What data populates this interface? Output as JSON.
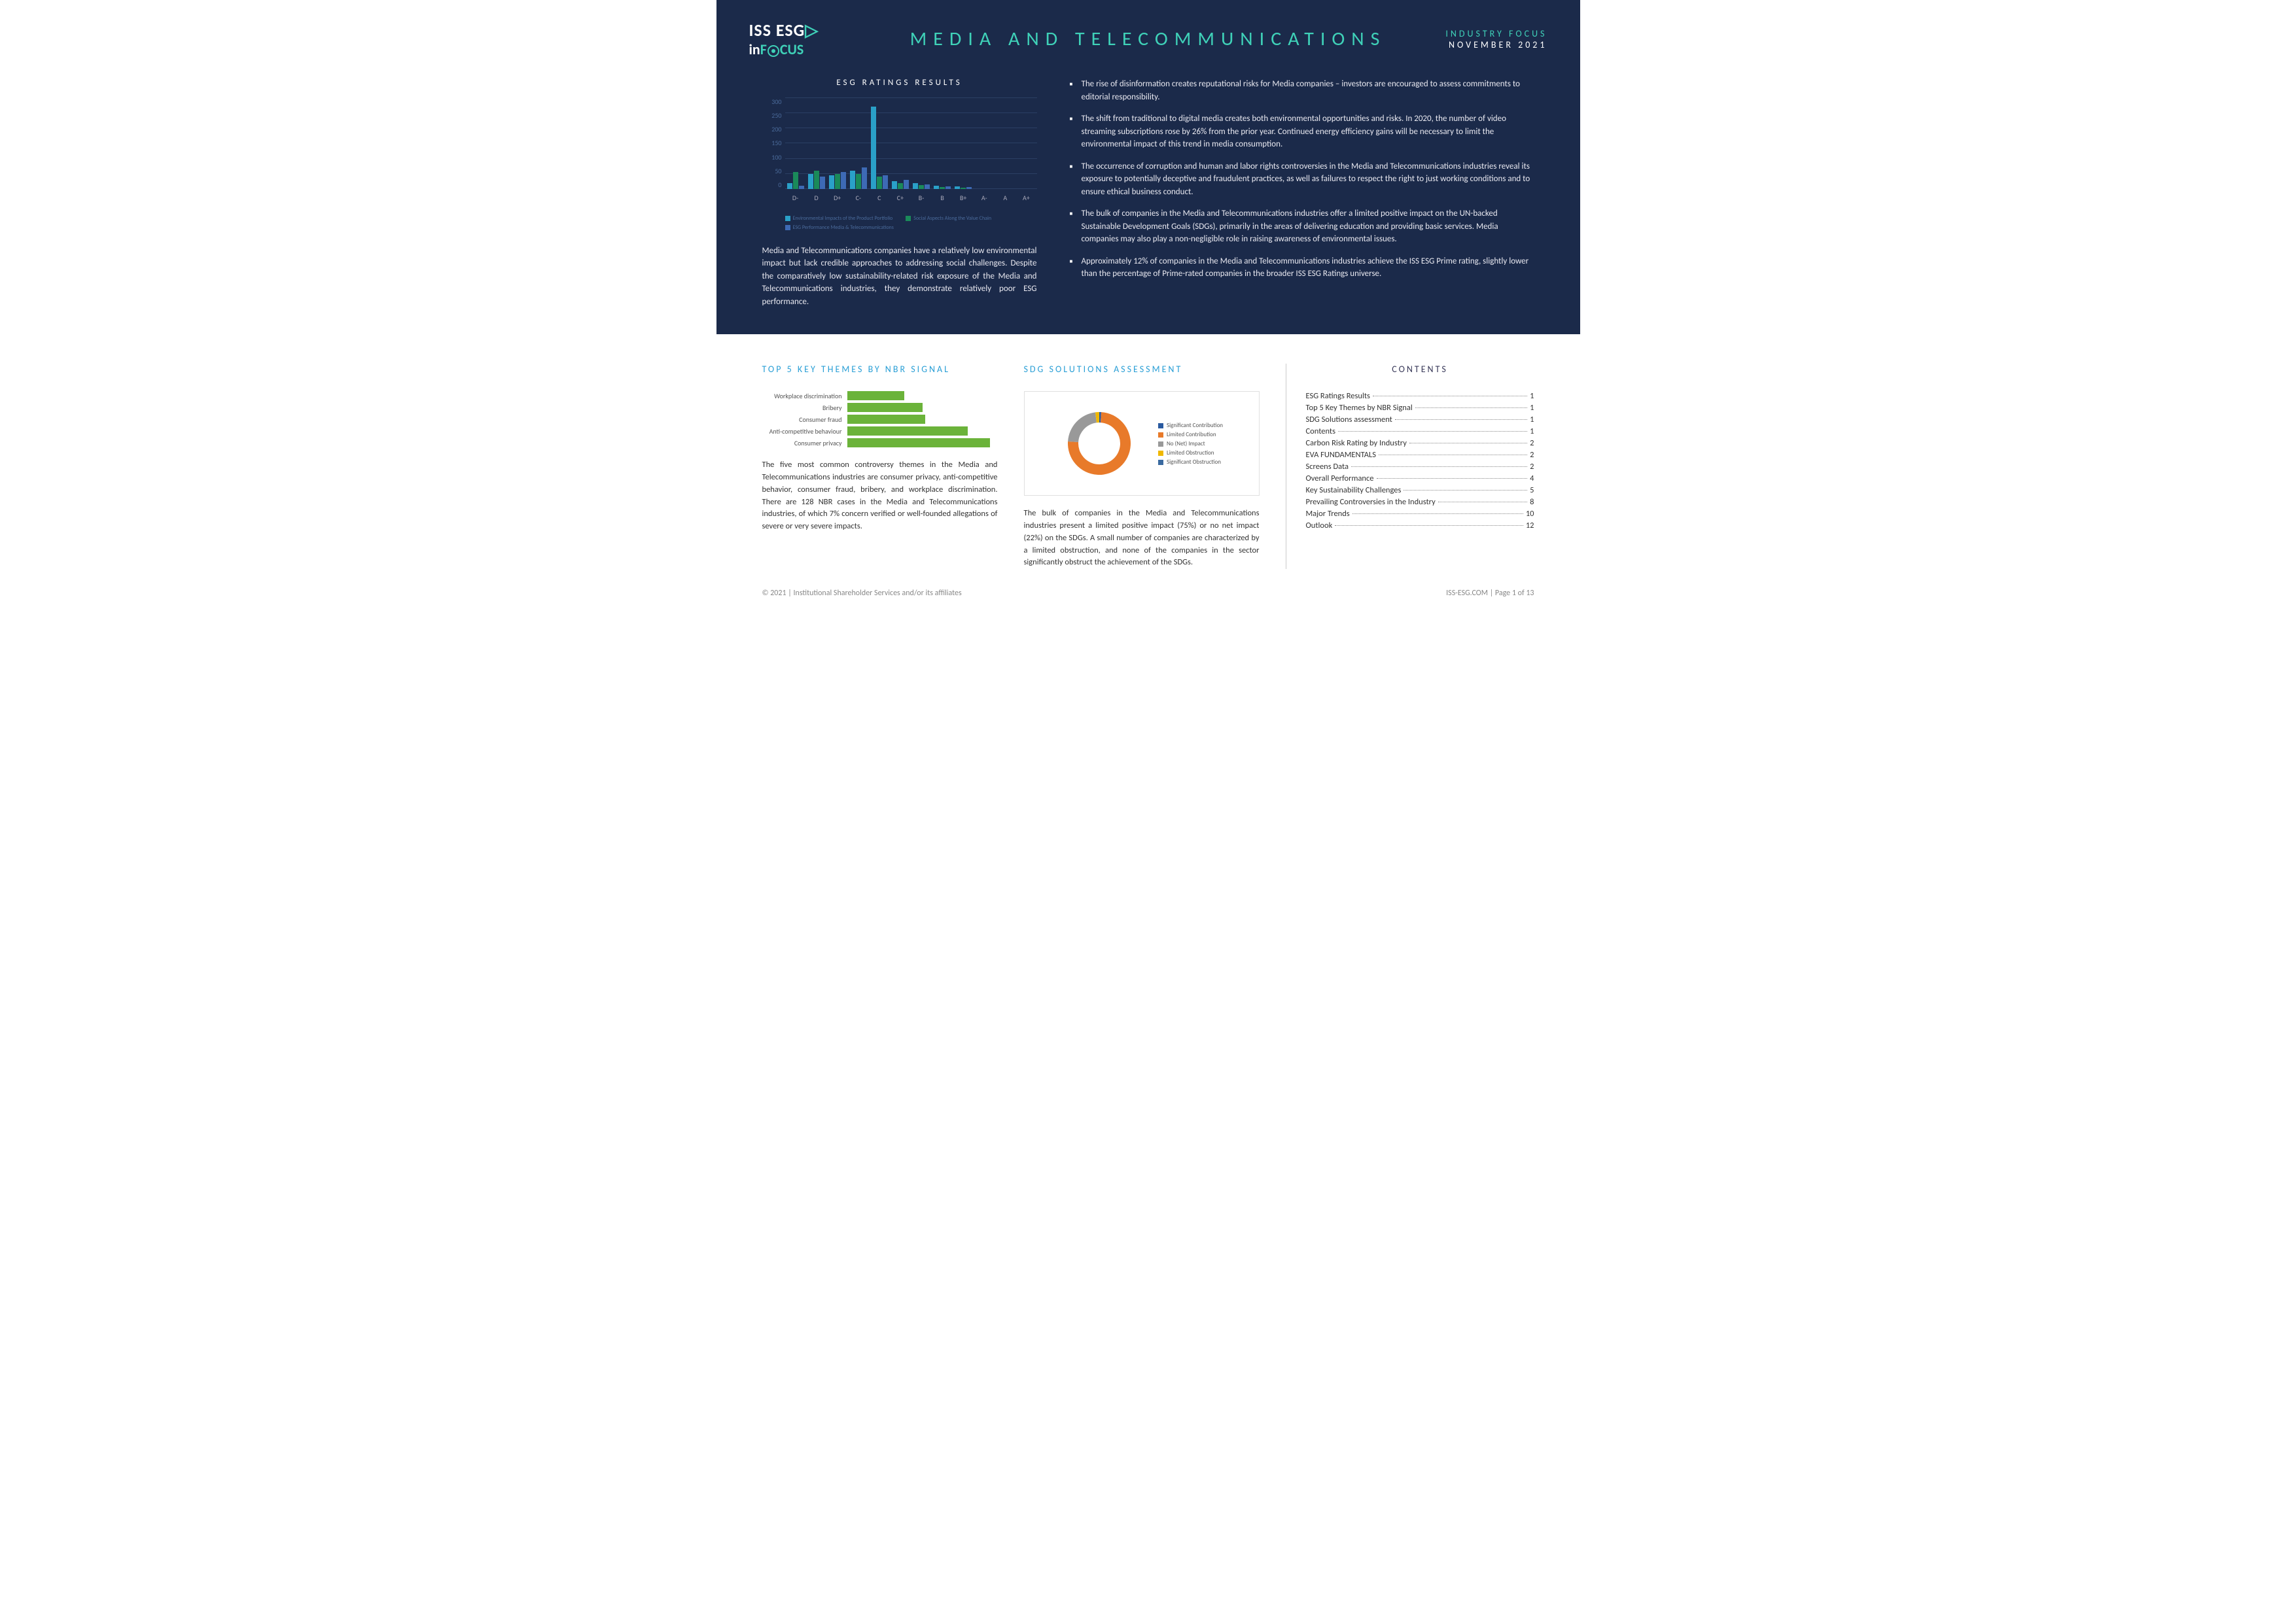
{
  "header": {
    "logo_line1_a": "ISS ESG",
    "logo_line2_a": "in",
    "logo_line2_b": "F",
    "logo_line2_c": "CUS",
    "title": "MEDIA AND TELECOMMUNICATIONS",
    "subtitle": "INDUSTRY FOCUS",
    "date": "NOVEMBER 2021"
  },
  "esg_chart": {
    "title": "ESG RATINGS RESULTS",
    "ylim": [
      0,
      300
    ],
    "ytick_step": 50,
    "yticks": [
      "300",
      "250",
      "200",
      "150",
      "100",
      "50",
      "0"
    ],
    "categories": [
      "D-",
      "D",
      "D+",
      "C-",
      "C",
      "C+",
      "B-",
      "B",
      "B+",
      "A-",
      "A",
      "A+"
    ],
    "series": [
      {
        "name": "Environmental Impacts of the Product Portfolio",
        "color": "#2aa0c8",
        "values": [
          20,
          50,
          45,
          60,
          270,
          25,
          20,
          10,
          8,
          0,
          0,
          0
        ]
      },
      {
        "name": "Social Aspects Along the Value Chain",
        "color": "#1a8a5a",
        "values": [
          55,
          60,
          50,
          50,
          40,
          20,
          12,
          6,
          5,
          0,
          0,
          0
        ]
      },
      {
        "name": "ESG Performance Media & Telecommunications",
        "color": "#3d6ab5",
        "values": [
          10,
          40,
          55,
          70,
          45,
          30,
          15,
          8,
          6,
          0,
          0,
          0
        ]
      }
    ],
    "grid_color": "#4a6a9a",
    "paragraph": "Media and Telecommunications companies have a relatively low environmental impact but lack credible approaches to addressing social challenges. Despite the comparatively low sustainability-related risk exposure of the Media and Telecommunications industries, they demonstrate relatively poor ESG performance."
  },
  "bullets": [
    "The rise of disinformation creates reputational risks for Media companies – investors are encouraged to assess commitments to editorial responsibility.",
    "The shift from traditional to digital media creates both environmental opportunities and risks. In 2020, the number of video streaming subscriptions rose by 26% from the prior year. Continued energy efficiency gains will be necessary to limit the environmental impact of this trend in media consumption.",
    "The occurrence of corruption and human and labor rights controversies in the Media and Telecommunications industries reveal its exposure to potentially deceptive and fraudulent practices, as well as failures to respect the right to just working conditions and to ensure ethical business conduct.",
    "The bulk of companies in the Media and Telecommunications industries offer a limited positive impact on the UN-backed Sustainable Development Goals (SDGs), primarily in the areas of delivering education and providing basic services. Media companies may also play a non-negligible role in raising awareness of environmental issues.",
    "Approximately 12% of companies in the Media and Telecommunications industries achieve the ISS ESG Prime rating, slightly lower than the percentage of Prime-rated companies in the broader ISS ESG Ratings universe."
  ],
  "nbr": {
    "title": "TOP 5 KEY THEMES BY NBR SIGNAL",
    "bar_color": "#6bb33a",
    "items": [
      {
        "label": "Workplace discrimination",
        "value": 38
      },
      {
        "label": "Bribery",
        "value": 50
      },
      {
        "label": "Consumer fraud",
        "value": 52
      },
      {
        "label": "Anti-competitive behaviour",
        "value": 80
      },
      {
        "label": "Consumer privacy",
        "value": 95
      }
    ],
    "paragraph": "The five most common controversy themes in the Media and Telecommunications industries are consumer privacy, anti-competitive behavior, consumer fraud, bribery, and workplace discrimination. There are 128 NBR cases in the Media and Telecommunications industries, of which 7% concern verified or well-founded allegations of severe or very severe impacts."
  },
  "sdg": {
    "title": "SDG SOLUTIONS ASSESSMENT",
    "slices": [
      {
        "label": "Significant Contribution",
        "color": "#2a5aa0",
        "value": 1
      },
      {
        "label": "Limited Contribution",
        "color": "#e87a2a",
        "value": 75
      },
      {
        "label": "No (Net) Impact",
        "color": "#999999",
        "value": 22
      },
      {
        "label": "Limited Obstruction",
        "color": "#f0b800",
        "value": 2
      },
      {
        "label": "Significant Obstruction",
        "color": "#3a6aa0",
        "value": 0
      }
    ],
    "paragraph": "The bulk of companies in the Media and Telecommunications industries present a limited positive impact (75%) or no net impact (22%) on the SDGs. A small number of companies are characterized by a limited obstruction, and none of the companies in the sector significantly obstruct the achievement of the SDGs."
  },
  "contents": {
    "title": "CONTENTS",
    "items": [
      {
        "label": "ESG Ratings Results",
        "page": "1"
      },
      {
        "label": "Top 5 Key Themes by NBR Signal",
        "page": "1"
      },
      {
        "label": "SDG Solutions assessment",
        "page": "1"
      },
      {
        "label": "Contents",
        "page": "1"
      },
      {
        "label": "Carbon Risk Rating by Industry",
        "page": "2"
      },
      {
        "label": "EVA FUNDAMENTALS",
        "page": "2"
      },
      {
        "label": "Screens Data",
        "page": "2"
      },
      {
        "label": "Overall Performance",
        "page": "4"
      },
      {
        "label": "Key Sustainability Challenges",
        "page": "5"
      },
      {
        "label": "Prevailing Controversies in the Industry",
        "page": "8"
      },
      {
        "label": "Major Trends",
        "page": "10"
      },
      {
        "label": "Outlook",
        "page": "12"
      }
    ]
  },
  "footer": {
    "left": "© 2021 | Institutional Shareholder Services and/or its affiliates",
    "right": "ISS-ESG.COM | Page 1 of 13"
  }
}
